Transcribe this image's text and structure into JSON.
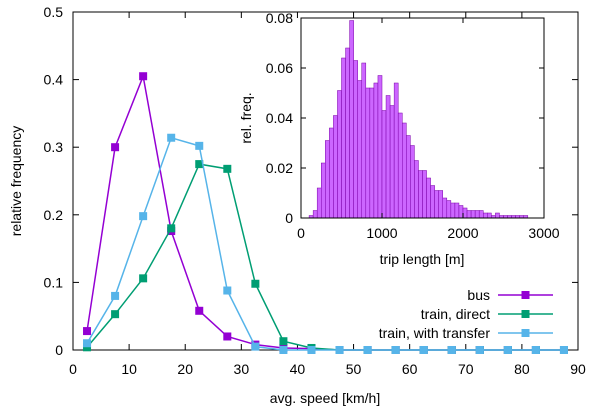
{
  "chart_data": [
    {
      "type": "line",
      "xlabel": "avg. speed [km/h]",
      "ylabel": "relative frequency",
      "xlim": [
        0,
        90
      ],
      "ylim": [
        0,
        0.5
      ],
      "xticks": [
        "0",
        "10",
        "20",
        "30",
        "40",
        "50",
        "60",
        "70",
        "80",
        "90"
      ],
      "yticks": [
        "0",
        "0.1",
        "0.2",
        "0.3",
        "0.4",
        "0.5"
      ],
      "grid": false,
      "legend_position": "bottom-right",
      "x": [
        2.5,
        7.5,
        12.5,
        17.5,
        22.5,
        27.5,
        32.5,
        37.5,
        42.5,
        47.5,
        52.5,
        57.5,
        62.5,
        67.5,
        72.5,
        77.5,
        82.5,
        87.5
      ],
      "series": [
        {
          "name": "bus",
          "color": "#9400D3",
          "marker": "square",
          "values": [
            0.028,
            0.3,
            0.405,
            0.176,
            0.058,
            0.02,
            0.008,
            0.003,
            0.002,
            0,
            0,
            0,
            0,
            0,
            0,
            0,
            0,
            0
          ]
        },
        {
          "name": "train, direct",
          "color": "#009E73",
          "marker": "square",
          "values": [
            0.004,
            0.053,
            0.106,
            0.18,
            0.275,
            0.268,
            0.098,
            0.013,
            0.003,
            0,
            0,
            0,
            0,
            0,
            0,
            0,
            0,
            0
          ]
        },
        {
          "name": "train, with transfer",
          "color": "#56B4E9",
          "marker": "square",
          "values": [
            0.01,
            0.08,
            0.198,
            0.314,
            0.302,
            0.088,
            0.005,
            0,
            0,
            0,
            0,
            0,
            0,
            0,
            0,
            0,
            0,
            0
          ]
        }
      ]
    },
    {
      "type": "bar",
      "inset": true,
      "xlabel": "trip length [m]",
      "ylabel": "rel. freq.",
      "xlim": [
        0,
        3000
      ],
      "ylim": [
        0,
        0.08
      ],
      "xticks": [
        "0",
        "1000",
        "2000",
        "3000"
      ],
      "yticks": [
        "0",
        "0.02",
        "0.04",
        "0.06",
        "0.08"
      ],
      "color": "#CC66FF",
      "bin_width": 50,
      "bin_starts": [
        100,
        150,
        200,
        250,
        300,
        350,
        400,
        450,
        500,
        550,
        600,
        650,
        700,
        750,
        800,
        850,
        900,
        950,
        1000,
        1050,
        1100,
        1150,
        1200,
        1250,
        1300,
        1350,
        1400,
        1450,
        1500,
        1550,
        1600,
        1650,
        1700,
        1750,
        1800,
        1850,
        1900,
        1950,
        2000,
        2050,
        2100,
        2150,
        2200,
        2250,
        2300,
        2350,
        2400,
        2450,
        2500,
        2550,
        2600,
        2650,
        2700,
        2750
      ],
      "values": [
        0.001,
        0.003,
        0.012,
        0.022,
        0.031,
        0.036,
        0.041,
        0.051,
        0.064,
        0.068,
        0.079,
        0.063,
        0.055,
        0.062,
        0.052,
        0.052,
        0.054,
        0.057,
        0.043,
        0.049,
        0.045,
        0.054,
        0.042,
        0.038,
        0.033,
        0.029,
        0.023,
        0.019,
        0.019,
        0.016,
        0.013,
        0.011,
        0.011,
        0.008,
        0.007,
        0.006,
        0.006,
        0.005,
        0.004,
        0.003,
        0.003,
        0.003,
        0.003,
        0.002,
        0.002,
        0.001,
        0.002,
        0.001,
        0.001,
        0.001,
        0.001,
        0.001,
        0.001,
        0.001
      ]
    }
  ]
}
